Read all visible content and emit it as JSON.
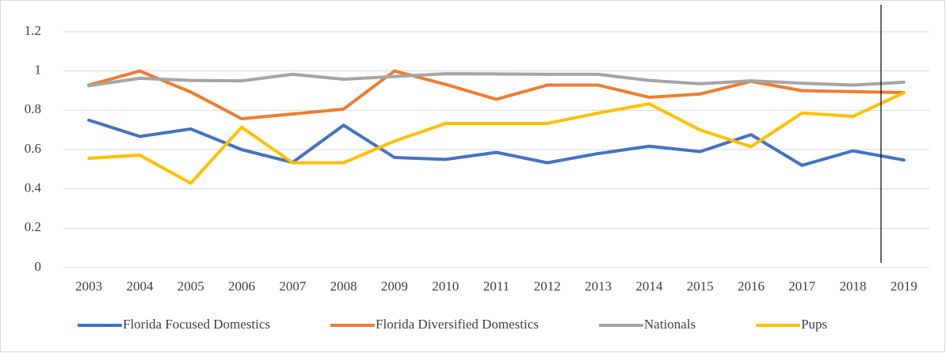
{
  "chart_data": {
    "type": "line",
    "categories": [
      "2003",
      "2004",
      "2005",
      "2006",
      "2007",
      "2008",
      "2009",
      "2010",
      "2011",
      "2012",
      "2013",
      "2014",
      "2015",
      "2016",
      "2017",
      "2018",
      "2019"
    ],
    "series": [
      {
        "name": "Florida Focused Domestics",
        "color": "#4472c4",
        "values": [
          0.75,
          0.667,
          0.705,
          0.6,
          0.535,
          0.724,
          0.56,
          0.55,
          0.586,
          0.533,
          0.58,
          0.617,
          0.59,
          0.676,
          0.52,
          0.594,
          0.547
        ]
      },
      {
        "name": "Florida Diversified Domestics",
        "color": "#ed7d31",
        "values": [
          0.928,
          1.0,
          0.893,
          0.757,
          0.781,
          0.806,
          1.0,
          0.932,
          0.856,
          0.928,
          0.928,
          0.866,
          0.883,
          0.947,
          0.9,
          0.895,
          0.89
        ]
      },
      {
        "name": "Nationals",
        "color": "#a5a5a5",
        "values": [
          0.925,
          0.963,
          0.952,
          0.95,
          0.983,
          0.958,
          0.972,
          0.986,
          0.985,
          0.983,
          0.983,
          0.952,
          0.935,
          0.95,
          0.938,
          0.928,
          0.943
        ]
      },
      {
        "name": "Pups",
        "color": "#ffc000",
        "values": [
          0.556,
          0.572,
          0.429,
          0.714,
          0.533,
          0.533,
          0.643,
          0.733,
          0.733,
          0.733,
          0.786,
          0.833,
          0.7,
          0.615,
          0.786,
          0.769,
          0.889
        ]
      }
    ],
    "ylim": [
      0,
      1.2
    ],
    "yticks": [
      0,
      0.2,
      0.4,
      0.6,
      0.8,
      1,
      1.2
    ],
    "grid": true,
    "legend": "bottom"
  }
}
